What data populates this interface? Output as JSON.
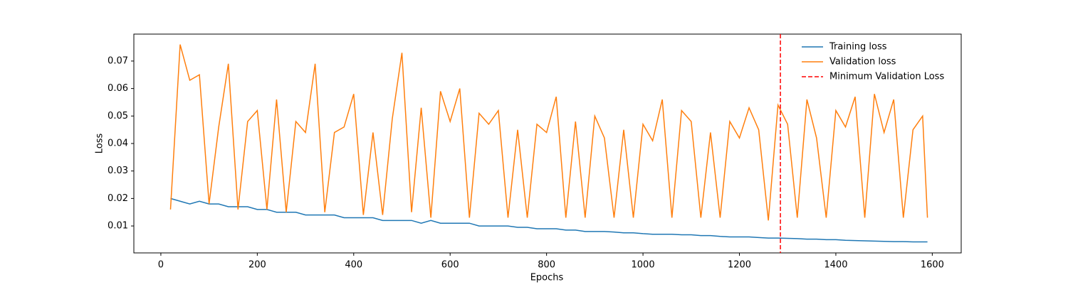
{
  "chart_data": {
    "type": "line",
    "xlabel": "Epochs",
    "ylabel": "Loss",
    "x": [
      20,
      40,
      60,
      80,
      100,
      120,
      140,
      160,
      180,
      200,
      220,
      240,
      260,
      280,
      300,
      320,
      340,
      360,
      380,
      400,
      420,
      440,
      460,
      480,
      500,
      520,
      540,
      560,
      580,
      600,
      620,
      640,
      660,
      680,
      700,
      720,
      740,
      760,
      780,
      800,
      820,
      840,
      860,
      880,
      900,
      920,
      940,
      960,
      980,
      1000,
      1020,
      1040,
      1060,
      1080,
      1100,
      1120,
      1140,
      1160,
      1180,
      1200,
      1220,
      1240,
      1260,
      1280,
      1300,
      1320,
      1340,
      1360,
      1380,
      1400,
      1420,
      1440,
      1460,
      1480,
      1500,
      1520,
      1540,
      1560,
      1580,
      1590
    ],
    "series": [
      {
        "name": "Training loss",
        "color": "#1f77b4",
        "values": [
          0.02,
          0.019,
          0.018,
          0.019,
          0.018,
          0.018,
          0.017,
          0.017,
          0.017,
          0.016,
          0.016,
          0.015,
          0.015,
          0.015,
          0.014,
          0.014,
          0.014,
          0.014,
          0.013,
          0.013,
          0.013,
          0.013,
          0.012,
          0.012,
          0.012,
          0.012,
          0.011,
          0.012,
          0.011,
          0.011,
          0.011,
          0.011,
          0.01,
          0.01,
          0.01,
          0.01,
          0.0095,
          0.0095,
          0.009,
          0.009,
          0.009,
          0.0085,
          0.0085,
          0.008,
          0.008,
          0.008,
          0.0078,
          0.0075,
          0.0075,
          0.0072,
          0.007,
          0.007,
          0.007,
          0.0068,
          0.0068,
          0.0065,
          0.0065,
          0.0062,
          0.006,
          0.006,
          0.006,
          0.0058,
          0.0056,
          0.0056,
          0.0055,
          0.0054,
          0.0052,
          0.0052,
          0.005,
          0.005,
          0.0048,
          0.0047,
          0.0046,
          0.0045,
          0.0044,
          0.0043,
          0.0043,
          0.0042,
          0.0042,
          0.0042
        ]
      },
      {
        "name": "Validation loss",
        "color": "#ff7f0e",
        "values": [
          0.016,
          0.076,
          0.063,
          0.065,
          0.018,
          0.046,
          0.069,
          0.016,
          0.048,
          0.052,
          0.016,
          0.056,
          0.015,
          0.048,
          0.044,
          0.069,
          0.015,
          0.044,
          0.046,
          0.058,
          0.014,
          0.044,
          0.014,
          0.049,
          0.073,
          0.015,
          0.053,
          0.013,
          0.059,
          0.048,
          0.06,
          0.013,
          0.051,
          0.047,
          0.052,
          0.013,
          0.045,
          0.013,
          0.047,
          0.044,
          0.057,
          0.013,
          0.048,
          0.013,
          0.05,
          0.042,
          0.013,
          0.045,
          0.013,
          0.047,
          0.041,
          0.056,
          0.013,
          0.052,
          0.048,
          0.013,
          0.044,
          0.013,
          0.048,
          0.042,
          0.053,
          0.045,
          0.012,
          0.054,
          0.047,
          0.013,
          0.056,
          0.042,
          0.013,
          0.052,
          0.046,
          0.057,
          0.013,
          0.058,
          0.044,
          0.056,
          0.013,
          0.045,
          0.05,
          0.013
        ]
      }
    ],
    "vline": {
      "x": 1285,
      "name": "Minimum Validation Loss",
      "color": "#ff0000",
      "dashed": true
    },
    "xlim": [
      -56,
      1660
    ],
    "ylim": [
      0.0002,
      0.0798
    ],
    "xticks": [
      0,
      200,
      400,
      600,
      800,
      1000,
      1200,
      1400,
      1600
    ],
    "yticks": [
      0.01,
      0.02,
      0.03,
      0.04,
      0.05,
      0.06,
      0.07
    ],
    "legend": "upper right"
  }
}
